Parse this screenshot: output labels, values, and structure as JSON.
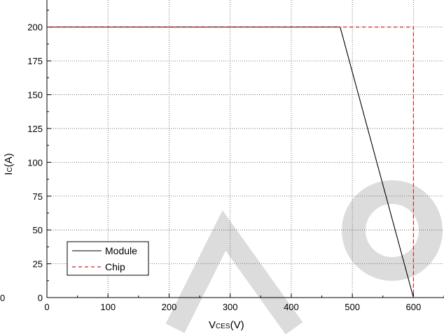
{
  "chart_data": {
    "type": "line",
    "xlabel_main": "V",
    "xlabel_sub": "CES",
    "xlabel_unit": "(V)",
    "ylabel_main": "I",
    "ylabel_sub": "C",
    "ylabel_unit": "(A)",
    "xlim": [
      0,
      650
    ],
    "ylim": [
      0,
      220
    ],
    "xticks": [
      0,
      100,
      200,
      300,
      400,
      500,
      600
    ],
    "yticks": [
      0,
      25,
      50,
      75,
      100,
      125,
      150,
      175,
      200
    ],
    "stray_tick_label": "0",
    "grid": true,
    "legend_position": "bottom-left",
    "series": [
      {
        "name": "Module",
        "color": "#000000",
        "dash": "solid",
        "x": [
          0,
          480,
          600
        ],
        "y": [
          200,
          200,
          0
        ]
      },
      {
        "name": "Chip",
        "color": "#d62020",
        "dash": "dashed",
        "x": [
          0,
          600,
          600
        ],
        "y": [
          200,
          200,
          0
        ]
      }
    ]
  }
}
